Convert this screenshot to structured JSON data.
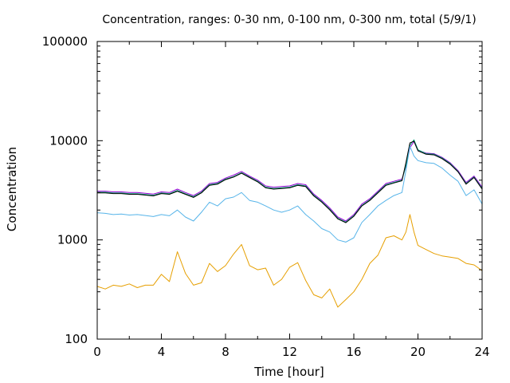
{
  "chart_data": {
    "type": "line",
    "title": "Concentration, ranges: 0-30 nm, 0-100 nm, 0-300 nm, total (5/9/1)",
    "xlabel": "Time [hour]",
    "ylabel": "Concentration",
    "xlim": [
      0,
      24
    ],
    "ylim": [
      100,
      100000
    ],
    "yscale": "log",
    "grid": false,
    "legend": "none",
    "x_ticks": [
      0,
      4,
      8,
      12,
      16,
      20,
      24
    ],
    "x_tick_labels": [
      "0",
      "4",
      "8",
      "12",
      "16",
      "20",
      "24"
    ],
    "y_ticks": [
      100,
      1000,
      10000,
      100000
    ],
    "y_tick_labels": [
      "100",
      "1000",
      "10000",
      "100000"
    ],
    "x": [
      0,
      0.5,
      1,
      1.5,
      2,
      2.5,
      3,
      3.5,
      4,
      4.5,
      5,
      5.5,
      6,
      6.5,
      7,
      7.5,
      8,
      8.5,
      9,
      9.5,
      10,
      10.5,
      11,
      11.5,
      12,
      12.5,
      13,
      13.5,
      14,
      14.5,
      15,
      15.5,
      16,
      16.5,
      17,
      17.5,
      18,
      18.5,
      19,
      19.25,
      19.5,
      19.75,
      20,
      20.5,
      21,
      21.5,
      22,
      22.5,
      23,
      23.5,
      24
    ],
    "series": [
      {
        "color": "#9400d3",
        "values": [
          3100,
          3100,
          3050,
          3050,
          3000,
          3000,
          2950,
          2900,
          3050,
          3000,
          3250,
          3000,
          2800,
          3100,
          3700,
          3800,
          4200,
          4500,
          4900,
          4400,
          4000,
          3500,
          3400,
          3450,
          3500,
          3700,
          3600,
          2900,
          2500,
          2100,
          1700,
          1550,
          1800,
          2300,
          2600,
          3100,
          3700,
          3900,
          4100,
          5500,
          8500,
          9800,
          8000,
          7500,
          7400,
          6800,
          6000,
          5000,
          3800,
          4400,
          3400
        ]
      },
      {
        "color": "#009e73",
        "values": [
          3020,
          3020,
          2970,
          2970,
          2920,
          2920,
          2870,
          2820,
          2970,
          2920,
          3150,
          2920,
          2720,
          3020,
          3600,
          3700,
          4100,
          4350,
          4750,
          4300,
          3900,
          3400,
          3300,
          3350,
          3400,
          3600,
          3500,
          2820,
          2430,
          2040,
          1650,
          1510,
          1750,
          2230,
          2530,
          3020,
          3600,
          3800,
          4000,
          5600,
          9000,
          10200,
          8100,
          7400,
          7300,
          6700,
          5900,
          4900,
          3700,
          4300,
          3300
        ]
      },
      {
        "color": "#000000",
        "values": [
          2980,
          2980,
          2930,
          2930,
          2880,
          2880,
          2830,
          2780,
          2930,
          2880,
          3100,
          2880,
          2680,
          2980,
          3550,
          3650,
          4050,
          4300,
          4700,
          4250,
          3850,
          3350,
          3250,
          3300,
          3350,
          3550,
          3450,
          2780,
          2400,
          2010,
          1630,
          1490,
          1730,
          2200,
          2500,
          2980,
          3550,
          3750,
          3950,
          6000,
          9500,
          9900,
          7900,
          7300,
          7200,
          6600,
          5800,
          4850,
          3650,
          4250,
          3250
        ]
      },
      {
        "color": "#56b4e9",
        "values": [
          1880,
          1850,
          1800,
          1820,
          1780,
          1800,
          1760,
          1720,
          1800,
          1750,
          2000,
          1700,
          1550,
          1900,
          2400,
          2200,
          2600,
          2700,
          3000,
          2500,
          2400,
          2200,
          2000,
          1900,
          2000,
          2200,
          1800,
          1550,
          1300,
          1200,
          1000,
          950,
          1050,
          1500,
          1800,
          2200,
          2500,
          2800,
          3000,
          5000,
          8800,
          7000,
          6300,
          6000,
          5900,
          5300,
          4500,
          3900,
          2800,
          3200,
          2300
        ]
      },
      {
        "color": "#e69f00",
        "values": [
          340,
          320,
          350,
          340,
          360,
          330,
          350,
          350,
          450,
          380,
          760,
          460,
          350,
          370,
          580,
          480,
          550,
          720,
          900,
          550,
          500,
          520,
          350,
          400,
          530,
          590,
          390,
          280,
          260,
          320,
          210,
          250,
          300,
          400,
          580,
          700,
          1050,
          1100,
          1000,
          1200,
          1800,
          1200,
          880,
          800,
          730,
          690,
          670,
          650,
          580,
          560,
          490
        ]
      }
    ]
  }
}
